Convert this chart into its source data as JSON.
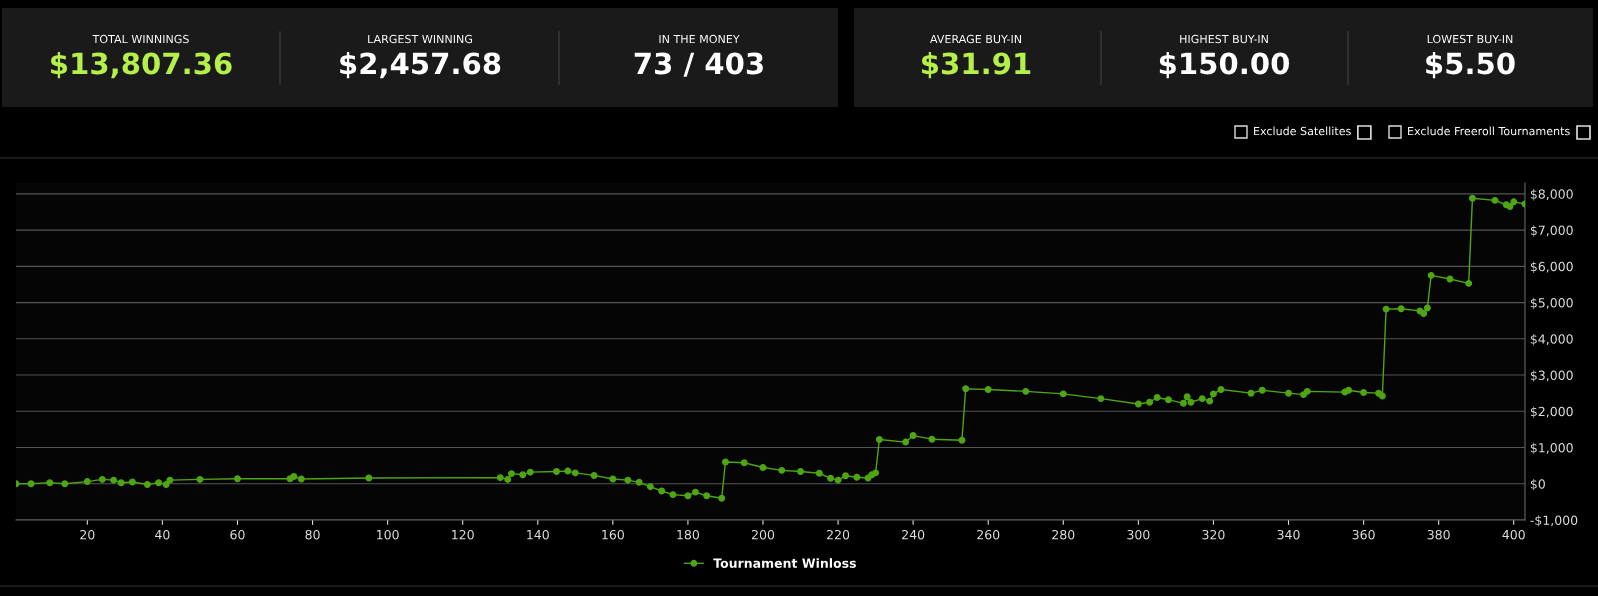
{
  "chart_data": {
    "type": "line",
    "annotations": [
      "TOTAL WINNINGS",
      "$13,807.36",
      "LARGEST WINNING",
      "$2,457.68",
      "IN THE MONEY",
      "73 / 403",
      "AVERAGE BUY-IN",
      "$31.91",
      "HIGHEST BUY-IN",
      "$150.00",
      "LOWEST BUY-IN",
      "$5.50",
      "Exclude Satellites",
      "Exclude Freeroll Tournaments"
    ],
    "series": [
      {
        "name": "Tournament Winloss",
        "color": "#4fa614",
        "x": [
          1,
          5,
          10,
          14,
          20,
          24,
          27,
          29,
          32,
          36,
          39,
          41,
          42,
          50,
          60,
          74,
          75,
          77,
          95,
          130,
          132,
          133,
          136,
          138,
          145,
          148,
          150,
          155,
          160,
          164,
          167,
          170,
          173,
          176,
          180,
          182,
          185,
          189,
          190,
          195,
          200,
          205,
          210,
          215,
          218,
          220,
          222,
          225,
          228,
          229,
          230,
          231,
          238,
          240,
          245,
          253,
          254,
          260,
          270,
          280,
          290,
          300,
          303,
          305,
          308,
          312,
          313,
          314,
          317,
          319,
          320,
          322,
          330,
          333,
          340,
          344,
          345,
          355,
          356,
          360,
          364,
          365,
          366,
          370,
          375,
          376,
          377,
          378,
          383,
          388,
          389,
          395,
          398,
          399,
          400,
          403
        ],
        "values": [
          0,
          0,
          30,
          0,
          60,
          120,
          100,
          30,
          50,
          -20,
          30,
          -20,
          100,
          120,
          140,
          140,
          200,
          130,
          160,
          170,
          120,
          280,
          250,
          320,
          340,
          350,
          300,
          230,
          130,
          100,
          40,
          -80,
          -200,
          -300,
          -330,
          -230,
          -330,
          -400,
          600,
          580,
          450,
          370,
          340,
          290,
          150,
          100,
          220,
          180,
          160,
          250,
          300,
          1220,
          1150,
          1330,
          1230,
          1200,
          2620,
          2600,
          2550,
          2480,
          2350,
          2200,
          2250,
          2380,
          2320,
          2220,
          2400,
          2250,
          2350,
          2280,
          2480,
          2600,
          2500,
          2580,
          2500,
          2460,
          2550,
          2530,
          2580,
          2520,
          2500,
          2420,
          4820,
          4830,
          4770,
          4700,
          4850,
          5750,
          5650,
          5530,
          7880,
          7820,
          7700,
          7650,
          7780,
          7720
        ]
      }
    ],
    "xlim": [
      1,
      403
    ],
    "xticks": [
      20,
      40,
      60,
      80,
      100,
      120,
      140,
      160,
      180,
      200,
      220,
      240,
      260,
      280,
      300,
      320,
      340,
      360,
      380,
      400
    ],
    "ylim": [
      -1000,
      8300
    ],
    "yticks": [
      {
        "value": -1000,
        "label": "-$1,000"
      },
      {
        "value": 0,
        "label": "$0"
      },
      {
        "value": 1000,
        "label": "$1,000"
      },
      {
        "value": 2000,
        "label": "$2,000"
      },
      {
        "value": 3000,
        "label": "$3,000"
      },
      {
        "value": 4000,
        "label": "$4,000"
      },
      {
        "value": 5000,
        "label": "$5,000"
      },
      {
        "value": 6000,
        "label": "$6,000"
      },
      {
        "value": 7000,
        "label": "$7,000"
      },
      {
        "value": 8000,
        "label": "$8,000"
      }
    ],
    "grid": "y",
    "legend": "bottom",
    "marker": "circle",
    "line_style": "solid"
  }
}
